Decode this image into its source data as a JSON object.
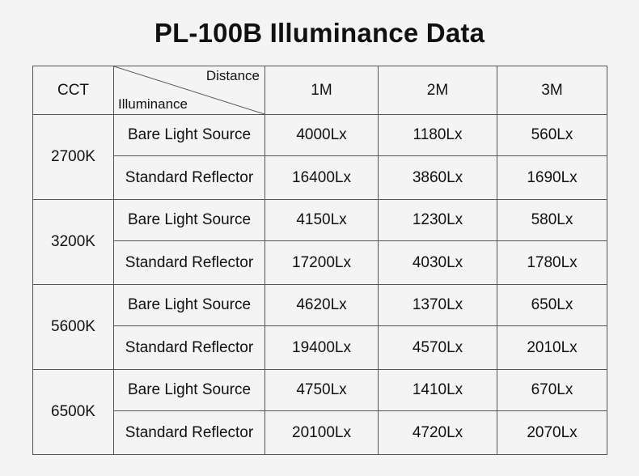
{
  "title": "PL-100B Illuminance Data",
  "table": {
    "header": {
      "cct": "CCT",
      "diag_top": "Distance",
      "diag_bottom": "Illuminance",
      "distances": [
        "1M",
        "2M",
        "3M"
      ]
    },
    "groups": [
      {
        "cct": "2700K",
        "rows": [
          {
            "type": "Bare Light Source",
            "values": [
              "4000Lx",
              "1180Lx",
              "560Lx"
            ]
          },
          {
            "type": "Standard Reflector",
            "values": [
              "16400Lx",
              "3860Lx",
              "1690Lx"
            ]
          }
        ]
      },
      {
        "cct": "3200K",
        "rows": [
          {
            "type": "Bare Light Source",
            "values": [
              "4150Lx",
              "1230Lx",
              "580Lx"
            ]
          },
          {
            "type": "Standard Reflector",
            "values": [
              "17200Lx",
              "4030Lx",
              "1780Lx"
            ]
          }
        ]
      },
      {
        "cct": "5600K",
        "rows": [
          {
            "type": "Bare Light Source",
            "values": [
              "4620Lx",
              "1370Lx",
              "650Lx"
            ]
          },
          {
            "type": "Standard Reflector",
            "values": [
              "19400Lx",
              "4570Lx",
              "2010Lx"
            ]
          }
        ]
      },
      {
        "cct": "6500K",
        "rows": [
          {
            "type": "Bare Light Source",
            "values": [
              "4750Lx",
              "1410Lx",
              "670Lx"
            ]
          },
          {
            "type": "Standard Reflector",
            "values": [
              "20100Lx",
              "4720Lx",
              "2070Lx"
            ]
          }
        ]
      }
    ]
  }
}
